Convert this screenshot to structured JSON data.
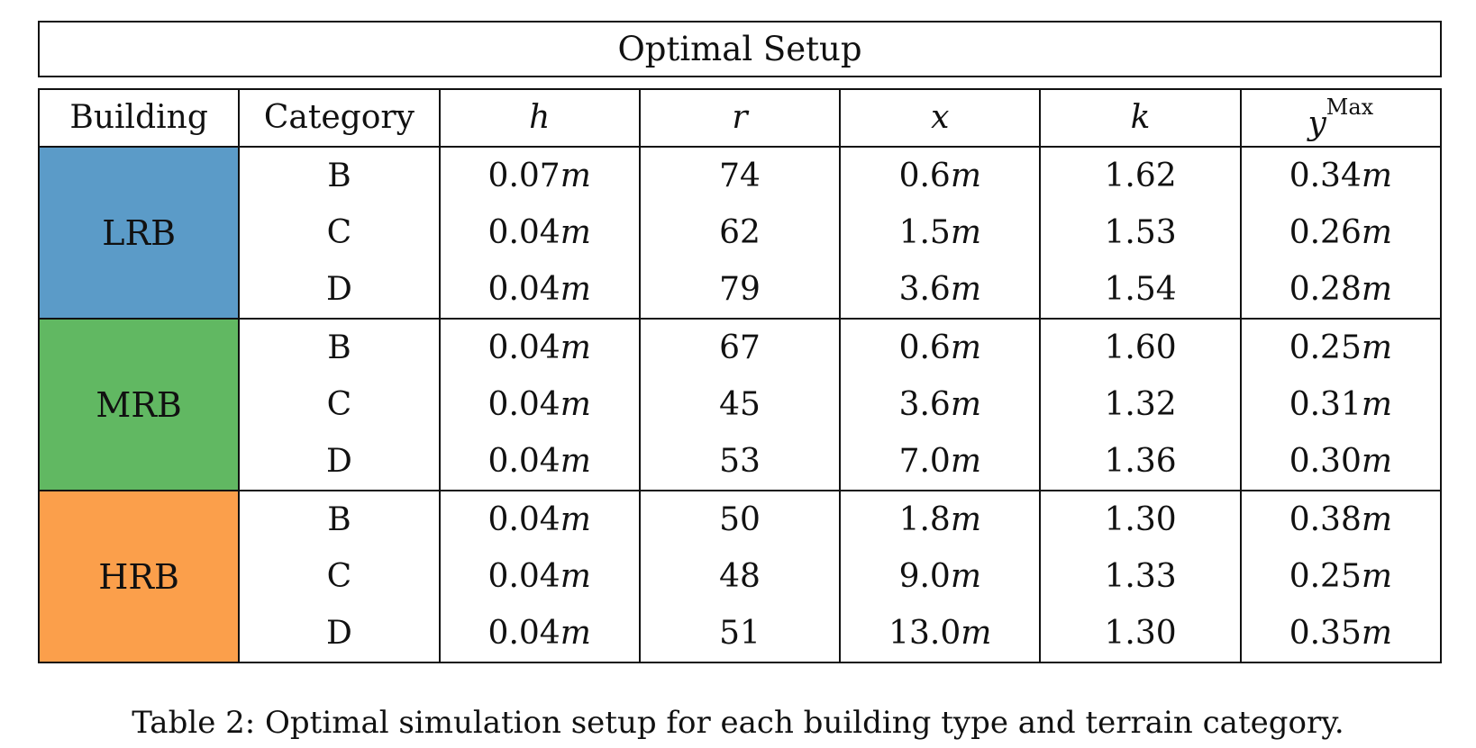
{
  "table": {
    "title": "Optimal Setup",
    "headers": {
      "building": "Building",
      "category": "Category",
      "h": "h",
      "r": "r",
      "x": "x",
      "k": "k",
      "y": "y",
      "y_sup": "Max"
    },
    "unit": "m",
    "groups": [
      {
        "building": "LRB",
        "color": "#5b9bc8",
        "rows": [
          {
            "category": "B",
            "h": "0.07",
            "r": "74",
            "x": "0.6",
            "k": "1.62",
            "y": "0.34"
          },
          {
            "category": "C",
            "h": "0.04",
            "r": "62",
            "x": "1.5",
            "k": "1.53",
            "y": "0.26"
          },
          {
            "category": "D",
            "h": "0.04",
            "r": "79",
            "x": "3.6",
            "k": "1.54",
            "y": "0.28"
          }
        ]
      },
      {
        "building": "MRB",
        "color": "#61b862",
        "rows": [
          {
            "category": "B",
            "h": "0.04",
            "r": "67",
            "x": "0.6",
            "k": "1.60",
            "y": "0.25"
          },
          {
            "category": "C",
            "h": "0.04",
            "r": "45",
            "x": "3.6",
            "k": "1.32",
            "y": "0.31"
          },
          {
            "category": "D",
            "h": "0.04",
            "r": "53",
            "x": "7.0",
            "k": "1.36",
            "y": "0.30"
          }
        ]
      },
      {
        "building": "HRB",
        "color": "#fb9f4b",
        "rows": [
          {
            "category": "B",
            "h": "0.04",
            "r": "50",
            "x": "1.8",
            "k": "1.30",
            "y": "0.38"
          },
          {
            "category": "C",
            "h": "0.04",
            "r": "48",
            "x": "9.0",
            "k": "1.33",
            "y": "0.25"
          },
          {
            "category": "D",
            "h": "0.04",
            "r": "51",
            "x": "13.0",
            "k": "1.30",
            "y": "0.35"
          }
        ]
      }
    ]
  },
  "caption": "Table 2: Optimal simulation setup for each building type and terrain category."
}
